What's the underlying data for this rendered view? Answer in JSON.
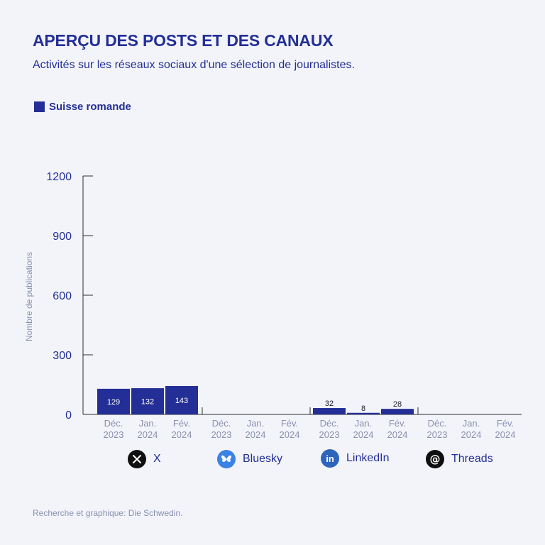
{
  "header": {
    "title": "APERÇU DES POSTS ET DES CANAUX",
    "subtitle": "Activités sur les réseaux sociaux d'une sélection de journalistes."
  },
  "legend": {
    "label": "Suisse romande",
    "color": "#232f96"
  },
  "footer": {
    "text": "Recherche et graphique: Die Schwedin."
  },
  "platforms": [
    {
      "label": "X",
      "icon": "x-logo-icon"
    },
    {
      "label": "Bluesky",
      "icon": "bluesky-butterfly-icon"
    },
    {
      "label": "LinkedIn",
      "icon": "linkedin-logo-icon"
    },
    {
      "label": "Threads",
      "icon": "threads-logo-icon"
    }
  ],
  "colors": {
    "bar": "#232f96",
    "text": "#232f96",
    "axis_label": "#8a90ad",
    "tick": "#232f96"
  },
  "chart_data": {
    "type": "bar",
    "title": "APERÇU DES POSTS ET DES CANAUX",
    "ylabel": "Nombre de publications",
    "ylim": [
      0,
      1200
    ],
    "yticks": [
      0,
      300,
      600,
      900,
      1200
    ],
    "grid": false,
    "legend_position": "top-left",
    "groups": [
      {
        "name": "X",
        "categories": [
          [
            "Déc.",
            "2023"
          ],
          [
            "Jan.",
            "2024"
          ],
          [
            "Fév.",
            "2024"
          ]
        ],
        "values": [
          129,
          132,
          143
        ],
        "labels": [
          "129",
          "132",
          "143"
        ]
      },
      {
        "name": "Bluesky",
        "categories": [
          [
            "Déc.",
            "2023"
          ],
          [
            "Jan.",
            "2024"
          ],
          [
            "Fév.",
            "2024"
          ]
        ],
        "values": [
          0,
          0,
          0
        ],
        "labels": [
          "",
          "",
          ""
        ]
      },
      {
        "name": "LinkedIn",
        "categories": [
          [
            "Déc.",
            "2023"
          ],
          [
            "Jan.",
            "2024"
          ],
          [
            "Fév.",
            "2024"
          ]
        ],
        "values": [
          32,
          8,
          28
        ],
        "labels": [
          "32",
          "8",
          "28"
        ]
      },
      {
        "name": "Threads",
        "categories": [
          [
            "Déc.",
            "2023"
          ],
          [
            "Jan.",
            "2024"
          ],
          [
            "Fév.",
            "2024"
          ]
        ],
        "values": [
          0,
          0,
          0
        ],
        "labels": [
          "",
          "",
          ""
        ]
      }
    ],
    "series": [
      {
        "name": "Suisse romande"
      }
    ]
  }
}
